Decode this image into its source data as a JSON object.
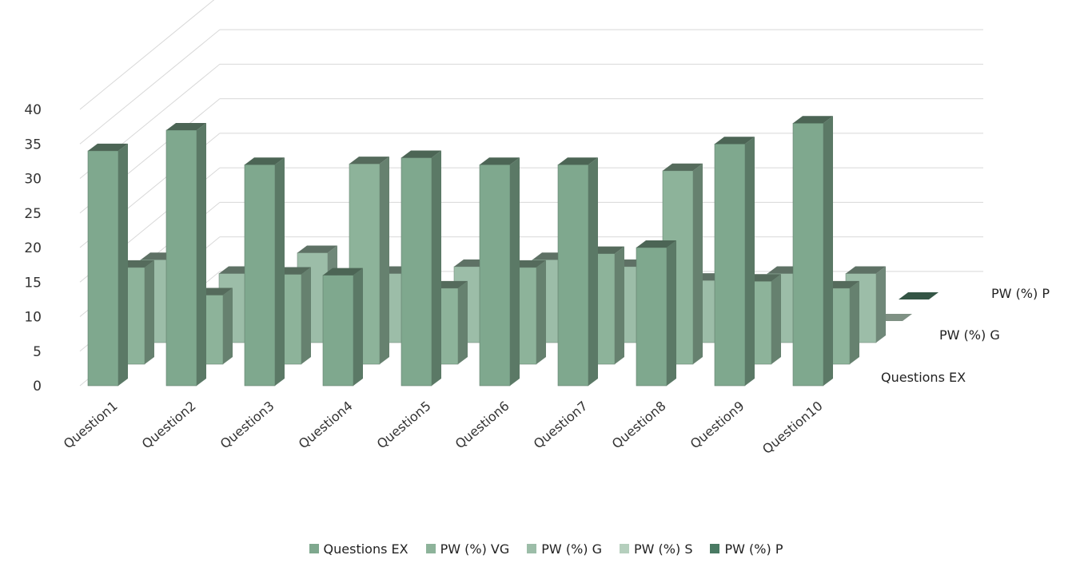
{
  "chart_data": {
    "type": "bar",
    "subtype": "3d-column",
    "categories": [
      "Question1",
      "Question2",
      "Question3",
      "Question4",
      "Question5",
      "Question6",
      "Question7",
      "Question8",
      "Question9",
      "Question10"
    ],
    "series": [
      {
        "name": "Questions EX",
        "values": [
          34,
          37,
          32,
          16,
          33,
          32,
          32,
          20,
          35,
          38
        ]
      },
      {
        "name": "PW (%) VG",
        "values": [
          14,
          10,
          13,
          29,
          11,
          14,
          16,
          28,
          12,
          11
        ]
      },
      {
        "name": "PW (%) G",
        "values": [
          12,
          10,
          13,
          10,
          11,
          12,
          11,
          9,
          10,
          10
        ]
      },
      {
        "name": "PW (%) S",
        "values": [
          0,
          0,
          0,
          0,
          0,
          0,
          0,
          0,
          0,
          0
        ]
      },
      {
        "name": "PW (%) P",
        "values": [
          0,
          0,
          0,
          0,
          0,
          0,
          0,
          0,
          0,
          0
        ]
      }
    ],
    "yticks": [
      0,
      5,
      10,
      15,
      20,
      25,
      30,
      35,
      40
    ],
    "ylim": [
      0,
      40
    ],
    "grid": true,
    "legend": "bottom",
    "depth_labels": [
      "PW (%) P",
      "PW (%) G",
      "Questions EX"
    ],
    "colors": [
      "#7fa88e",
      "#8db39a",
      "#9cbda8",
      "#b5cfbd",
      "#4a7a63"
    ]
  }
}
